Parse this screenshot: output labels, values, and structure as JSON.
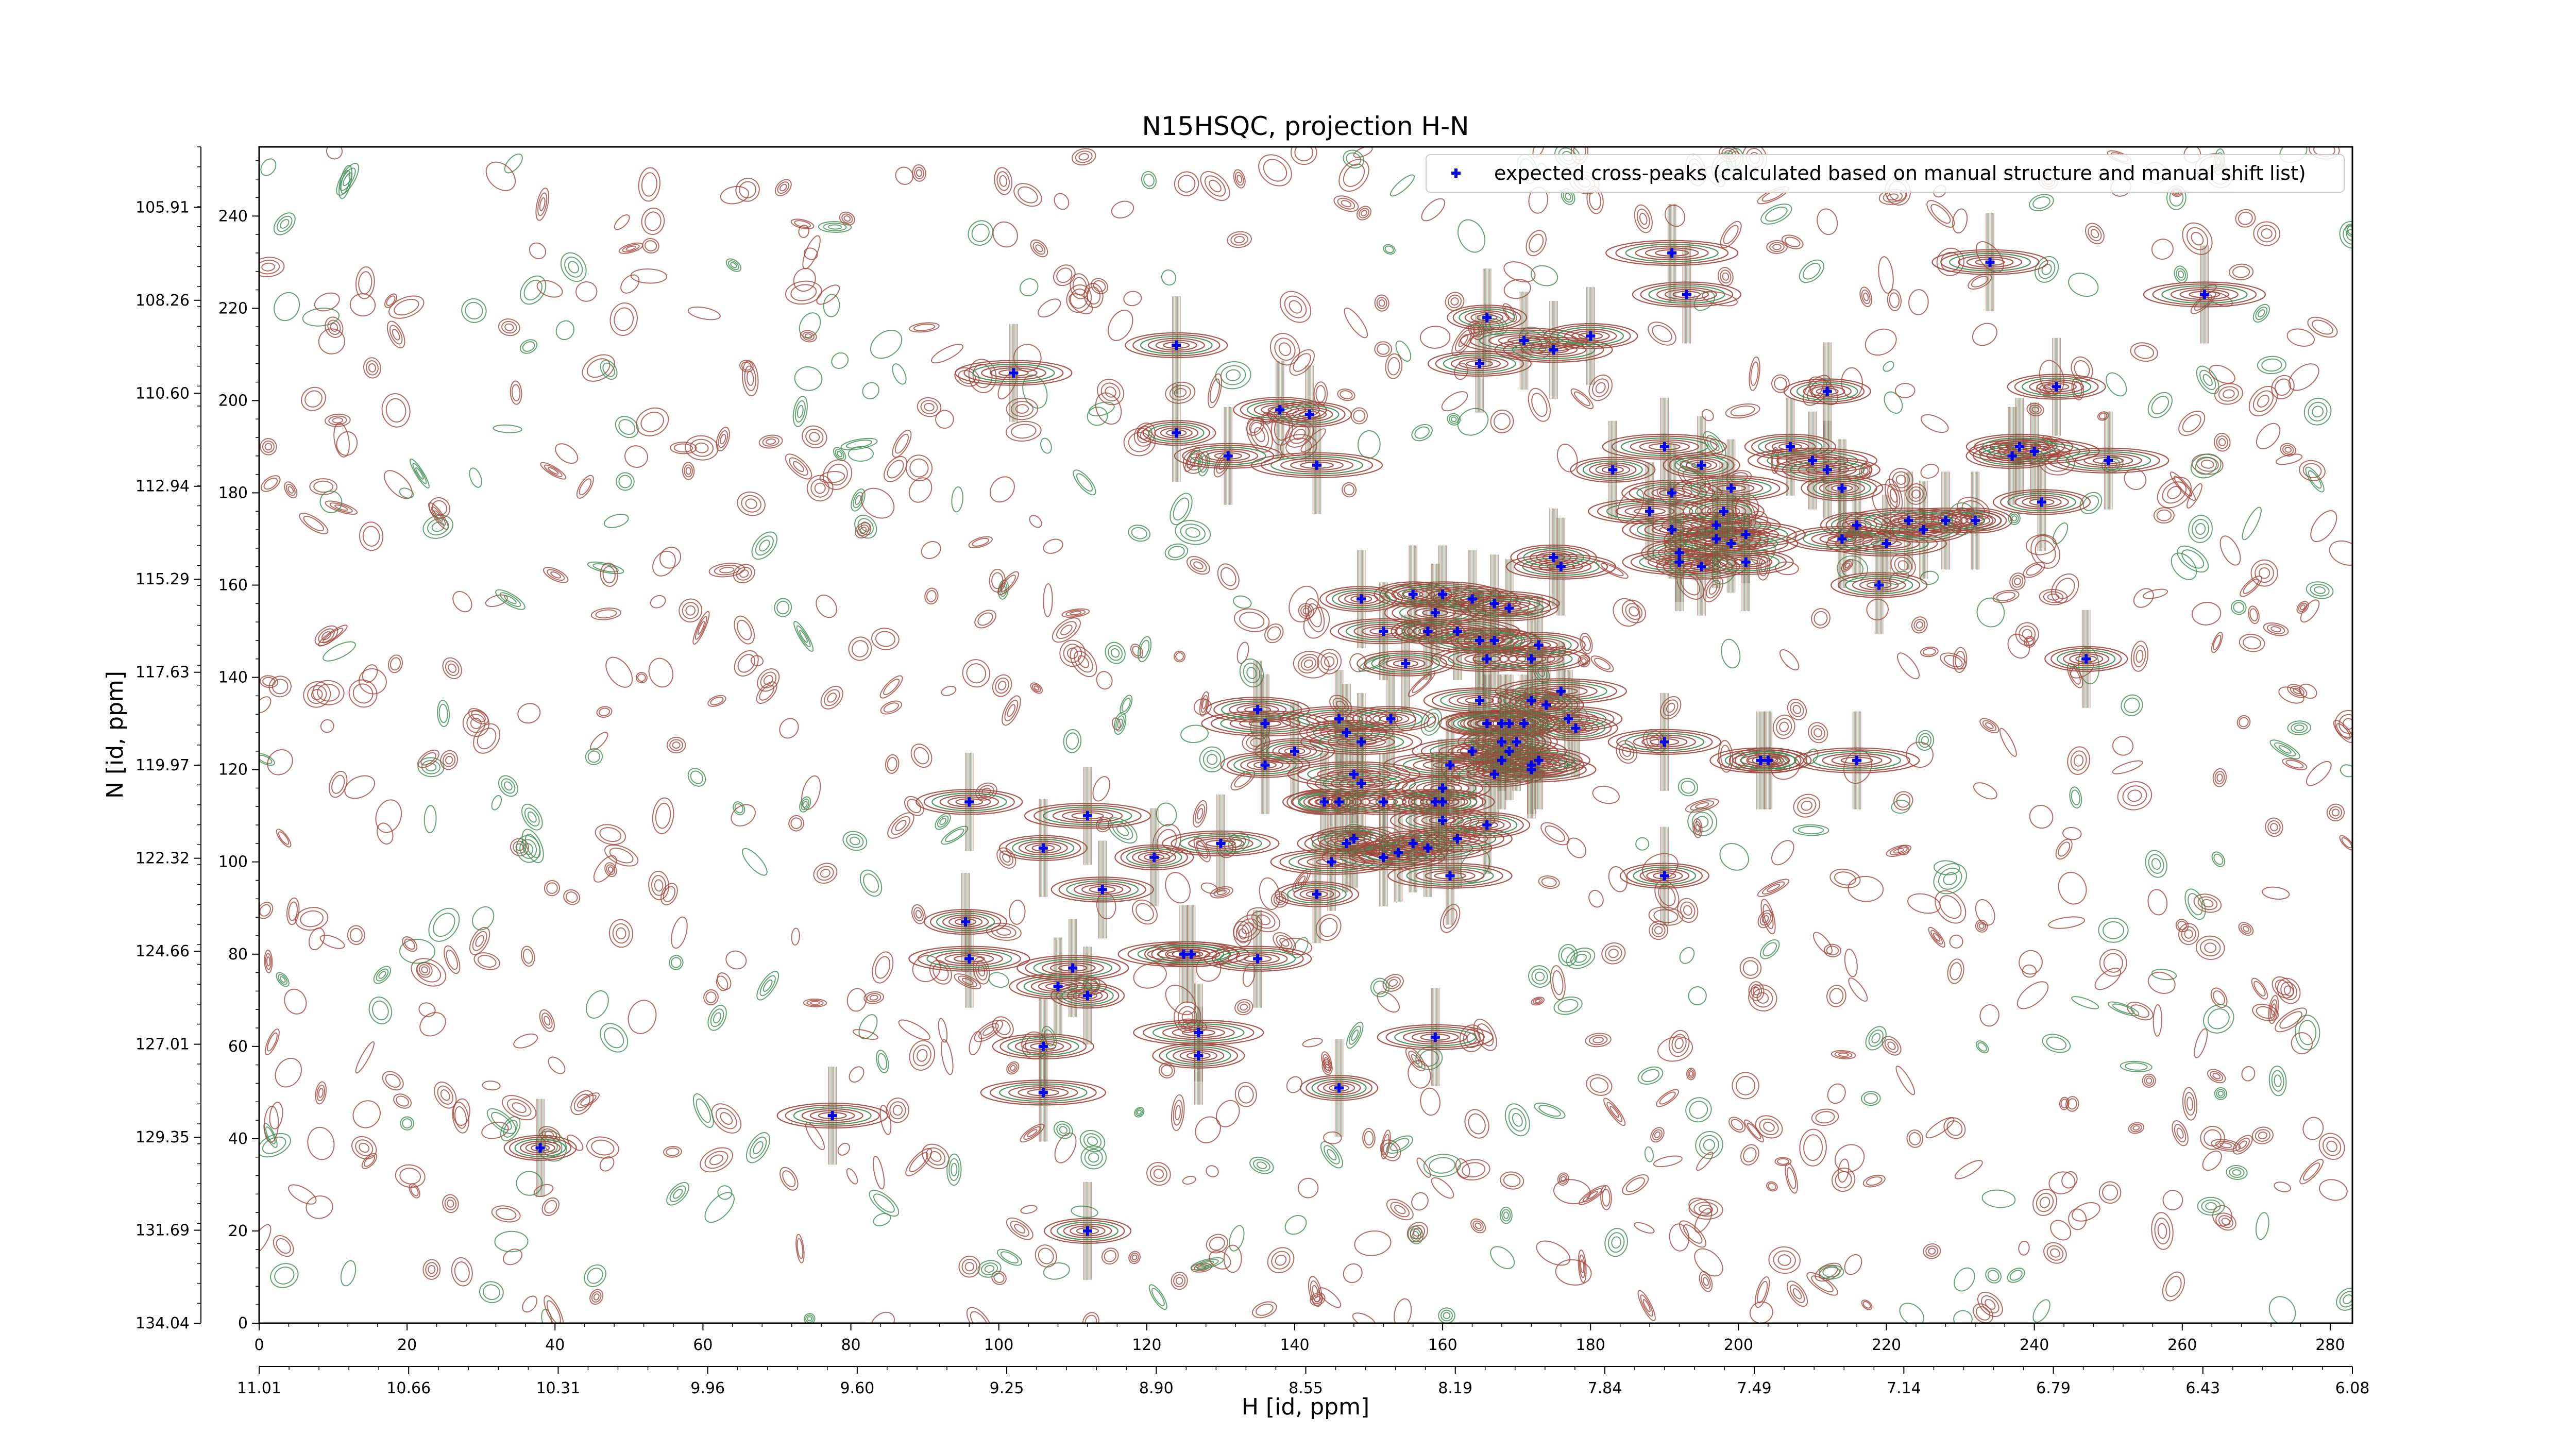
{
  "chart_data": {
    "type": "scatter",
    "title": "N15HSQC, projection H-N",
    "xlabel": "H [id, ppm]",
    "ylabel": "N [id, ppm]",
    "xlim": [
      0,
      283
    ],
    "ylim": [
      0,
      255
    ],
    "x_ticks": [
      0,
      20,
      40,
      60,
      80,
      100,
      120,
      140,
      160,
      180,
      200,
      220,
      240,
      260,
      280
    ],
    "y_ticks": [
      0,
      20,
      40,
      60,
      80,
      100,
      120,
      140,
      160,
      180,
      200,
      220,
      240
    ],
    "x_ppm_ticks": [
      "11.01",
      "10.66",
      "10.31",
      "9.96",
      "9.60",
      "9.25",
      "8.90",
      "8.55",
      "8.19",
      "7.84",
      "7.49",
      "7.14",
      "6.79",
      "6.43",
      "6.08"
    ],
    "y_ppm_ticks": [
      "134.04",
      "131.69",
      "129.35",
      "127.01",
      "124.66",
      "122.32",
      "119.97",
      "117.63",
      "115.29",
      "112.94",
      "110.60",
      "108.26",
      "105.91"
    ],
    "contour_colors": {
      "positive": "#a0463c",
      "negative": "#3c8c50"
    },
    "legend": {
      "label": "expected cross-peaks (calculated based on manual structure and manual shift list)",
      "position": "top-right"
    },
    "series": [
      {
        "name": "expected cross-peaks (calculated based on manual structure and manual shift list)",
        "color": "#0000ee",
        "points": [
          [
            38,
            38
          ],
          [
            77.5,
            45
          ],
          [
            112,
            20
          ],
          [
            106,
            50
          ],
          [
            106,
            60
          ],
          [
            146,
            51
          ],
          [
            159,
            62
          ],
          [
            127,
            58
          ],
          [
            127,
            63
          ],
          [
            96,
            113
          ],
          [
            95.5,
            87
          ],
          [
            96,
            79
          ],
          [
            108,
            73
          ],
          [
            112,
            71
          ],
          [
            110,
            77
          ],
          [
            106,
            103
          ],
          [
            112,
            110
          ],
          [
            114,
            94
          ],
          [
            121,
            101
          ],
          [
            130,
            104
          ],
          [
            126,
            80
          ],
          [
            125,
            80
          ],
          [
            135,
            79
          ],
          [
            143,
            93
          ],
          [
            145,
            100
          ],
          [
            147,
            104
          ],
          [
            144,
            113
          ],
          [
            146,
            113
          ],
          [
            136,
            121
          ],
          [
            136,
            130
          ],
          [
            135,
            133
          ],
          [
            140,
            124
          ],
          [
            146,
            131
          ],
          [
            147,
            128
          ],
          [
            148,
            119
          ],
          [
            149,
            117
          ],
          [
            148,
            105
          ],
          [
            152,
            101
          ],
          [
            154,
            102
          ],
          [
            156,
            104
          ],
          [
            152,
            113
          ],
          [
            153,
            131
          ],
          [
            158,
            103
          ],
          [
            160,
            109
          ],
          [
            160,
            113
          ],
          [
            159,
            113
          ],
          [
            160,
            116
          ],
          [
            161,
            121
          ],
          [
            162,
            105
          ],
          [
            166,
            108
          ],
          [
            161,
            97
          ],
          [
            167,
            119
          ],
          [
            168,
            122
          ],
          [
            169,
            124
          ],
          [
            169,
            130
          ],
          [
            172,
            120
          ],
          [
            172,
            121
          ],
          [
            170,
            126
          ],
          [
            164,
            124
          ],
          [
            166,
            130
          ],
          [
            171,
            130
          ],
          [
            166,
            144
          ],
          [
            167,
            148
          ],
          [
            162,
            150
          ],
          [
            159,
            154
          ],
          [
            156,
            158
          ],
          [
            160,
            158
          ],
          [
            164,
            157
          ],
          [
            167,
            156
          ],
          [
            152,
            150
          ],
          [
            149,
            157
          ],
          [
            149,
            126
          ],
          [
            155,
            143
          ],
          [
            158,
            150
          ],
          [
            165,
            135
          ],
          [
            168,
            126
          ],
          [
            168,
            130
          ],
          [
            173,
            122
          ],
          [
            172,
            135
          ],
          [
            172,
            144
          ],
          [
            173,
            147
          ],
          [
            176,
            137
          ],
          [
            177,
            131
          ],
          [
            178,
            129
          ],
          [
            165,
            148
          ],
          [
            169,
            155
          ],
          [
            174,
            134
          ],
          [
            190,
            126
          ],
          [
            190,
            97
          ],
          [
            171,
            213
          ],
          [
            165,
            208
          ],
          [
            166,
            218
          ],
          [
            175,
            211
          ],
          [
            180,
            214
          ],
          [
            191,
            232
          ],
          [
            193,
            223
          ],
          [
            183,
            185
          ],
          [
            188,
            176
          ],
          [
            191,
            172
          ],
          [
            192,
            167
          ],
          [
            192,
            165
          ],
          [
            195,
            164
          ],
          [
            197,
            173
          ],
          [
            197,
            170
          ],
          [
            198,
            176
          ],
          [
            201,
            171
          ],
          [
            201,
            165
          ],
          [
            199,
            169
          ],
          [
            176,
            164
          ],
          [
            175,
            166
          ],
          [
            190,
            190
          ],
          [
            191,
            180
          ],
          [
            195,
            186
          ],
          [
            199,
            181
          ],
          [
            207,
            190
          ],
          [
            210,
            187
          ],
          [
            212,
            185
          ],
          [
            214,
            181
          ],
          [
            220,
            169
          ],
          [
            219,
            160
          ],
          [
            216,
            173
          ],
          [
            214,
            170
          ],
          [
            212,
            202
          ],
          [
            216,
            122
          ],
          [
            203,
            122
          ],
          [
            204,
            122
          ],
          [
            234,
            230
          ],
          [
            237,
            188
          ],
          [
            240,
            189
          ],
          [
            238,
            190
          ],
          [
            247,
            144
          ],
          [
            250,
            187
          ],
          [
            241,
            178
          ],
          [
            232,
            174
          ],
          [
            228,
            174
          ],
          [
            225,
            172
          ],
          [
            223,
            174
          ],
          [
            124,
            212
          ],
          [
            124,
            193
          ],
          [
            102,
            206
          ],
          [
            138,
            198
          ],
          [
            143,
            186
          ],
          [
            131,
            188
          ],
          [
            142,
            197
          ],
          [
            263,
            223
          ],
          [
            243,
            203
          ]
        ]
      }
    ]
  }
}
